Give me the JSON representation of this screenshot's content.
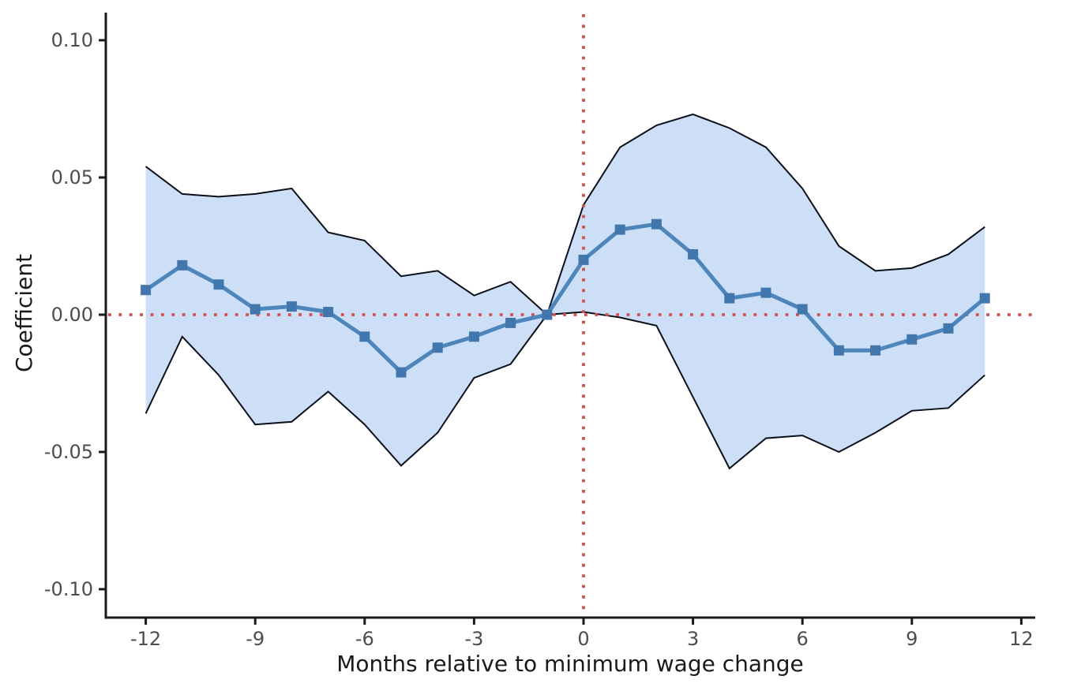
{
  "chart_data": {
    "type": "line",
    "title": "",
    "xlabel": "Months relative to minimum wage change",
    "ylabel": "Coefficient",
    "legend": "none",
    "grid": "off",
    "xlim": [
      -13.1,
      12.4
    ],
    "ylim": [
      -0.11,
      0.11
    ],
    "x": [
      -12,
      -11,
      -10,
      -9,
      -8,
      -7,
      -6,
      -5,
      -4,
      -3,
      -2,
      -1,
      0,
      1,
      2,
      3,
      4,
      5,
      6,
      7,
      8,
      9,
      10,
      11
    ],
    "series": [
      {
        "name": "coefficient",
        "values": [
          0.009,
          0.018,
          0.011,
          0.002,
          0.003,
          0.001,
          -0.008,
          -0.021,
          -0.012,
          -0.008,
          -0.003,
          0.0,
          0.02,
          0.031,
          0.033,
          0.022,
          0.006,
          0.008,
          0.002,
          -0.013,
          -0.013,
          -0.009,
          -0.005,
          0.006
        ]
      },
      {
        "name": "ci_upper",
        "values": [
          0.054,
          0.044,
          0.043,
          0.044,
          0.046,
          0.03,
          0.027,
          0.014,
          0.016,
          0.007,
          0.012,
          0.0,
          0.04,
          0.061,
          0.069,
          0.073,
          0.068,
          0.061,
          0.046,
          0.025,
          0.016,
          0.017,
          0.022,
          0.032
        ]
      },
      {
        "name": "ci_lower",
        "values": [
          -0.036,
          -0.008,
          -0.022,
          -0.04,
          -0.039,
          -0.028,
          -0.04,
          -0.055,
          -0.043,
          -0.023,
          -0.018,
          0.0,
          0.001,
          -0.001,
          -0.004,
          -0.03,
          -0.056,
          -0.045,
          -0.044,
          -0.05,
          -0.043,
          -0.035,
          -0.034,
          -0.022
        ]
      }
    ],
    "x_tick_values": [
      -12,
      -9,
      -6,
      -3,
      0,
      3,
      6,
      9,
      12
    ],
    "x_tick_labels": [
      "-12",
      "-9",
      "-6",
      "-3",
      "0",
      "3",
      "6",
      "9",
      "12"
    ],
    "y_tick_values": [
      0.1,
      0.05,
      0.0,
      -0.05,
      -0.1
    ],
    "y_tick_labels": [
      "0.10",
      "0.05",
      "0.00",
      "-0.05",
      "-0.10"
    ],
    "reference_lines": {
      "horizontal_y": 0,
      "vertical_x": 0,
      "style": "dotted"
    },
    "marker_shape": "square",
    "colors": {
      "band_fill": "#cddff6",
      "band_edge": "#0b0f1a",
      "line": "#4e86bc",
      "marker": "#4277ad",
      "reference": "#d0514f",
      "axis": "#1a1a1a",
      "tick_label": "#4d4d4d"
    }
  }
}
